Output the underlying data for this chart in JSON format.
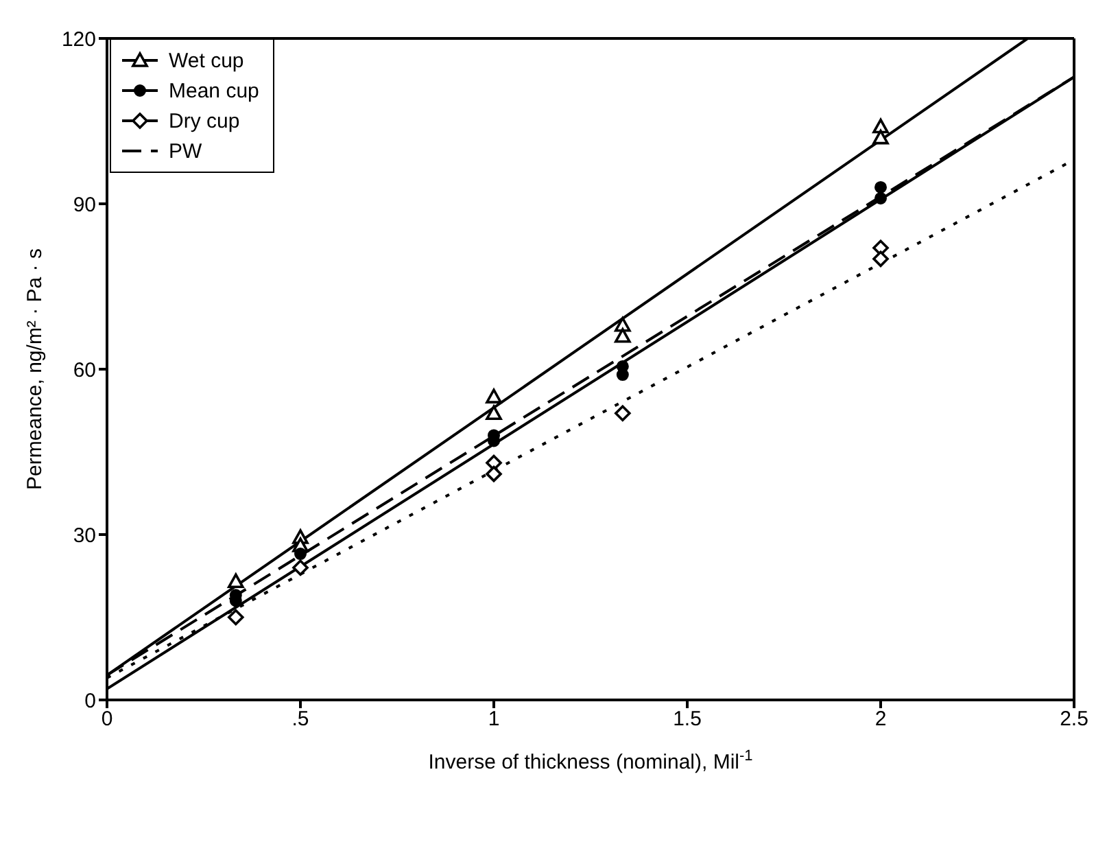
{
  "chart_data": {
    "type": "scatter",
    "xlabel": "Inverse of thickness (nominal), Mil$^{-1}$",
    "ylabel": "Permeance, ng/m² · Pa · s",
    "xlim": [
      0,
      2.5
    ],
    "xticks": [
      0,
      {
        "value": 0.5,
        "label": ".5"
      },
      1,
      1.5,
      2,
      2.5
    ],
    "ylim": [
      0,
      120
    ],
    "yticks": [
      0,
      30,
      60,
      90,
      120
    ],
    "legend": "top left",
    "series": [
      {
        "name": "Wet cup",
        "marker": "triangle",
        "color": "#000000",
        "x": [
          0.333,
          0.5,
          0.5,
          1,
          1,
          1.333,
          1.333,
          2,
          2
        ],
        "values": [
          21.5,
          29.5,
          28,
          55,
          52,
          68,
          66,
          104,
          102
        ]
      },
      {
        "name": "Mean cup",
        "marker": "circle",
        "color": "#000000",
        "x": [
          0.333,
          0.333,
          0.5,
          1,
          1,
          1.333,
          1.333,
          2,
          2
        ],
        "values": [
          19,
          18,
          26.5,
          48,
          47,
          60.5,
          59,
          93,
          91
        ]
      },
      {
        "name": "Dry cup",
        "marker": "diamond",
        "color": "#000000",
        "x": [
          0.333,
          0.5,
          1,
          1,
          1.333,
          2,
          2
        ],
        "values": [
          15,
          24,
          43,
          41,
          52,
          82,
          80
        ]
      },
      {
        "type": "line",
        "line_style": "solid",
        "color": "#000000",
        "x": [
          0,
          2.38
        ],
        "values": [
          4.5,
          120
        ]
      },
      {
        "type": "line",
        "line_style": "solid",
        "color": "#000000",
        "x": [
          0,
          2.5
        ],
        "values": [
          2,
          113
        ]
      },
      {
        "name": "PW",
        "type": "line",
        "line_style": "dashed",
        "color": "#000000",
        "x": [
          0,
          2.5
        ],
        "values": [
          4.5,
          113
        ]
      },
      {
        "type": "line",
        "line_style": "dotted",
        "color": "#000000",
        "x": [
          0,
          2.5
        ],
        "values": [
          4,
          98
        ]
      }
    ]
  }
}
